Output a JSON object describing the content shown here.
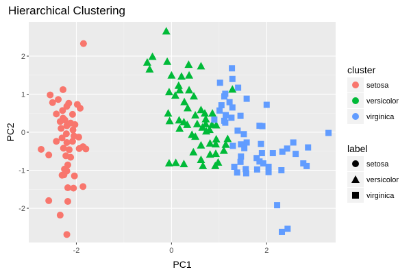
{
  "chart_data": {
    "type": "scatter",
    "title": "Hierarchical Clustering",
    "xlabel": "PC1",
    "ylabel": "PC2",
    "xlim": [
      -3.0,
      3.45
    ],
    "ylim": [
      -2.9,
      2.9
    ],
    "xticks": [
      -2,
      0,
      2
    ],
    "yticks": [
      -2,
      -1,
      0,
      1,
      2
    ],
    "xtick_labels": [
      "-2",
      "0",
      "2"
    ],
    "ytick_labels": [
      "-2",
      "-1",
      "0",
      "1",
      "2"
    ],
    "grid": true,
    "legend_placement": "right",
    "legends": [
      {
        "title": "cluster",
        "entries": [
          {
            "label": "setosa",
            "color": "#F8766D"
          },
          {
            "label": "versicolor",
            "color": "#00BA38"
          },
          {
            "label": "virginica",
            "color": "#619CFF"
          }
        ]
      },
      {
        "title": "label",
        "entries": [
          {
            "label": "setosa",
            "shape": "circle"
          },
          {
            "label": "versicolor",
            "shape": "triangle"
          },
          {
            "label": "virginica",
            "shape": "square"
          }
        ]
      }
    ],
    "series": [
      {
        "cluster": "setosa",
        "label": "setosa",
        "color": "#F8766D",
        "shape": "circle",
        "points": [
          [
            -1.85,
            2.33
          ],
          [
            -2.28,
            1.12
          ],
          [
            -2.55,
            0.98
          ],
          [
            -2.38,
            0.86
          ],
          [
            -2.16,
            0.76
          ],
          [
            -1.98,
            0.73
          ],
          [
            -2.5,
            0.78
          ],
          [
            -2.2,
            0.68
          ],
          [
            -1.92,
            0.63
          ],
          [
            -2.29,
            0.57
          ],
          [
            -2.42,
            0.48
          ],
          [
            -2.08,
            0.47
          ],
          [
            -2.28,
            0.37
          ],
          [
            -2.24,
            0.32
          ],
          [
            -2.34,
            0.28
          ],
          [
            -2.12,
            0.24
          ],
          [
            -2.03,
            0.2
          ],
          [
            -2.2,
            0.17
          ],
          [
            -2.32,
            0.1
          ],
          [
            -2.07,
            0.06
          ],
          [
            -2.21,
            -0.04
          ],
          [
            -2.05,
            -0.1
          ],
          [
            -1.95,
            -0.13
          ],
          [
            -2.3,
            -0.15
          ],
          [
            -2.42,
            -0.24
          ],
          [
            -2.2,
            -0.27
          ],
          [
            -2.08,
            -0.24
          ],
          [
            -1.86,
            -0.38
          ],
          [
            -2.74,
            -0.45
          ],
          [
            -2.27,
            -0.42
          ],
          [
            -2.15,
            -0.46
          ],
          [
            -1.94,
            -0.43
          ],
          [
            -1.8,
            -0.44
          ],
          [
            -2.58,
            -0.6
          ],
          [
            -2.22,
            -0.62
          ],
          [
            -2.12,
            -0.66
          ],
          [
            -2.18,
            -0.86
          ],
          [
            -2.25,
            -0.97
          ],
          [
            -2.2,
            -1.02
          ],
          [
            -2.3,
            -1.13
          ],
          [
            -2.26,
            -1.12
          ],
          [
            -2.04,
            -1.15
          ],
          [
            -2.18,
            -1.46
          ],
          [
            -2.06,
            -1.47
          ],
          [
            -1.86,
            -1.43
          ],
          [
            -2.58,
            -1.8
          ],
          [
            -2.18,
            -1.82
          ],
          [
            -2.34,
            -2.18
          ],
          [
            -2.2,
            -2.69
          ]
        ]
      },
      {
        "cluster": "versicolor",
        "label": "versicolor",
        "color": "#00BA38",
        "shape": "triangle",
        "points": [
          [
            -0.11,
            2.66
          ],
          [
            -0.4,
            1.99
          ],
          [
            -0.51,
            1.84
          ],
          [
            -0.09,
            1.86
          ],
          [
            0.36,
            1.78
          ],
          [
            0.62,
            1.74
          ],
          [
            -0.46,
            1.66
          ],
          [
            0.0,
            1.5
          ],
          [
            0.37,
            1.5
          ],
          [
            0.21,
            1.47
          ],
          [
            0.15,
            1.23
          ],
          [
            1.28,
            1.13
          ],
          [
            -0.05,
            1.06
          ],
          [
            0.17,
            1.11
          ],
          [
            0.37,
            1.11
          ],
          [
            0.08,
            0.97
          ],
          [
            0.47,
            0.95
          ],
          [
            0.27,
            0.8
          ],
          [
            0.34,
            0.64
          ],
          [
            0.62,
            0.59
          ],
          [
            0.7,
            0.5
          ],
          [
            0.86,
            0.5
          ],
          [
            -0.07,
            0.5
          ],
          [
            0.5,
            0.45
          ],
          [
            0.72,
            0.35
          ],
          [
            0.16,
            0.32
          ],
          [
            0.26,
            0.27
          ],
          [
            0.72,
            0.22
          ],
          [
            0.54,
            0.22
          ],
          [
            0.85,
            0.2
          ],
          [
            0.33,
            0.2
          ],
          [
            -0.04,
            0.3
          ],
          [
            0.94,
            0.19
          ],
          [
            0.65,
            0.13
          ],
          [
            0.17,
            0.1
          ],
          [
            0.8,
            0.07
          ],
          [
            0.73,
            0.03
          ],
          [
            0.43,
            -0.06
          ],
          [
            0.5,
            -0.11
          ],
          [
            0.94,
            -0.18
          ],
          [
            1.18,
            -0.17
          ],
          [
            0.81,
            -0.29
          ],
          [
            0.93,
            -0.31
          ],
          [
            1.14,
            -0.32
          ],
          [
            0.62,
            -0.34
          ],
          [
            0.46,
            -0.52
          ],
          [
            1.1,
            -0.48
          ],
          [
            0.93,
            -0.56
          ],
          [
            0.81,
            -0.58
          ],
          [
            0.62,
            -0.72
          ],
          [
            0.98,
            -0.79
          ],
          [
            0.26,
            -0.83
          ],
          [
            0.09,
            -0.8
          ],
          [
            0.66,
            -0.88
          ],
          [
            0.92,
            -0.88
          ],
          [
            -0.05,
            -0.81
          ]
        ]
      },
      {
        "cluster": "virginica",
        "label": "virginica",
        "color": "#619CFF",
        "shape": "square",
        "points": [
          [
            1.27,
            1.68
          ],
          [
            1.28,
            1.4
          ],
          [
            1.02,
            1.3
          ],
          [
            1.4,
            1.17
          ],
          [
            1.13,
            1.01
          ],
          [
            1.58,
            0.88
          ],
          [
            1.11,
            0.94
          ],
          [
            1.22,
            0.79
          ],
          [
            1.28,
            0.65
          ],
          [
            1.05,
            0.71
          ],
          [
            2.0,
            0.72
          ],
          [
            1.01,
            0.57
          ],
          [
            1.14,
            0.45
          ],
          [
            1.26,
            0.38
          ],
          [
            1.45,
            0.43
          ],
          [
            0.9,
            0.33
          ],
          [
            1.11,
            0.3
          ],
          [
            1.13,
            0.25
          ],
          [
            1.85,
            0.17
          ],
          [
            1.91,
            0.16
          ],
          [
            1.39,
            0.04
          ],
          [
            1.52,
            -0.05
          ],
          [
            1.58,
            -0.27
          ],
          [
            1.46,
            -0.32
          ],
          [
            1.88,
            -0.31
          ],
          [
            1.29,
            -0.36
          ],
          [
            1.53,
            -0.42
          ],
          [
            2.56,
            -0.27
          ],
          [
            2.87,
            -0.4
          ],
          [
            2.43,
            -0.43
          ],
          [
            3.3,
            -0.02
          ],
          [
            2.33,
            -0.51
          ],
          [
            1.9,
            -0.55
          ],
          [
            2.13,
            -0.55
          ],
          [
            2.61,
            -0.57
          ],
          [
            1.46,
            -0.64
          ],
          [
            1.79,
            -0.68
          ],
          [
            1.85,
            -0.77
          ],
          [
            1.45,
            -0.78
          ],
          [
            1.93,
            -0.82
          ],
          [
            2.77,
            -0.82
          ],
          [
            2.84,
            -0.89
          ],
          [
            1.32,
            -0.91
          ],
          [
            1.56,
            -0.97
          ],
          [
            1.8,
            -0.98
          ],
          [
            1.57,
            -1.08
          ],
          [
            1.38,
            -1.06
          ],
          [
            2.04,
            -1.05
          ],
          [
            2.04,
            -0.91
          ],
          [
            2.31,
            -1.0
          ],
          [
            2.22,
            -1.92
          ],
          [
            2.44,
            -2.54
          ],
          [
            2.32,
            -2.62
          ]
        ]
      }
    ]
  }
}
